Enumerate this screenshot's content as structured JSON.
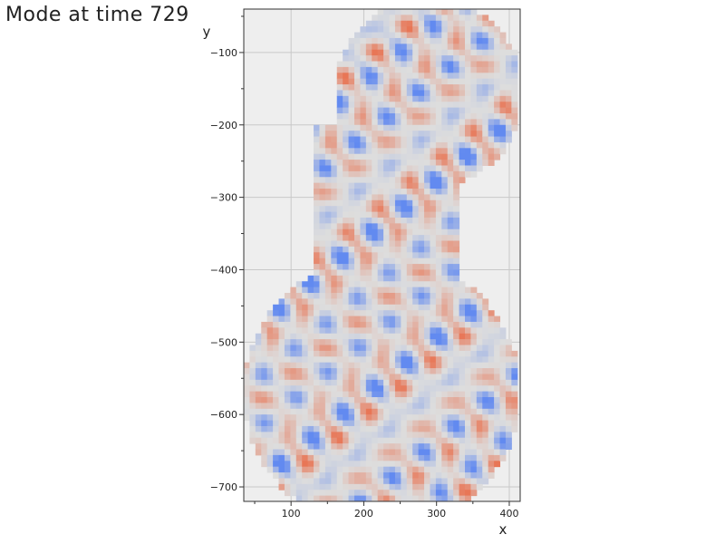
{
  "chart_data": {
    "type": "heatmap",
    "title": "Mode at time 729",
    "xlabel": "x",
    "ylabel": "y",
    "xlim": [
      35,
      415
    ],
    "ylim": [
      -720,
      -40
    ],
    "xticks": [
      100,
      200,
      300,
      400
    ],
    "yticks": [
      -100,
      -200,
      -300,
      -400,
      -500,
      -600,
      -700
    ],
    "xtick_labels": [
      "100",
      "200",
      "300",
      "400"
    ],
    "ytick_labels": [
      "−100",
      "−200",
      "−300",
      "−400",
      "−500",
      "−600",
      "−700"
    ],
    "grid": true,
    "colormap": "coolwarm",
    "background_color": "#eeeeee",
    "grid_color": "#c8c8c8",
    "cell_size": 8,
    "domain_upper_circle": {
      "cx": 290,
      "cy": -155,
      "r": 130
    },
    "domain_lower_circle": {
      "cx": 225,
      "cy": -570,
      "r": 190
    },
    "domain_neck": {
      "x_range": [
        130,
        330
      ],
      "y_range": [
        -430,
        -200
      ]
    }
  }
}
